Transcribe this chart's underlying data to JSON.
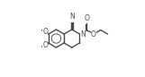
{
  "bond_color": "#4a4a4a",
  "bg_color": "#ffffff",
  "lw": 1.0,
  "fs": 5.5,
  "xlim": [
    -0.05,
    1.1
  ],
  "ylim": [
    -0.05,
    1.05
  ]
}
